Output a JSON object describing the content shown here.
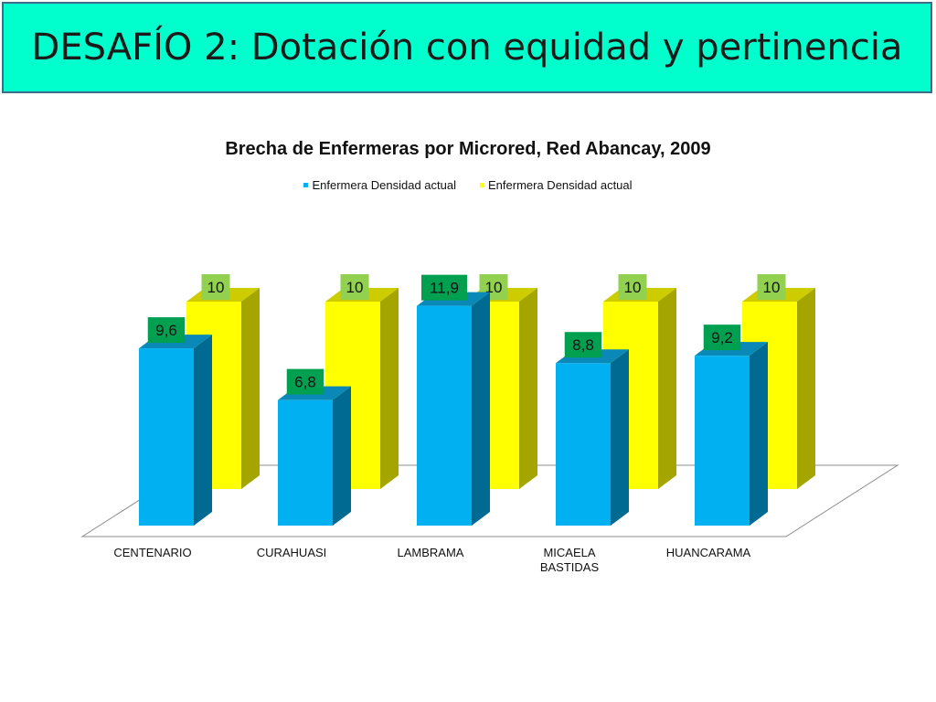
{
  "slide": {
    "title": "DESAFÍO 2: Dotación con equidad y pertinencia"
  },
  "colors": {
    "title_bg": "#00ffcc",
    "series1": "#00b0f0",
    "series2": "#ffff00",
    "label_green_dark": "#00a050",
    "label_green_light": "#92d050"
  },
  "chart_data": {
    "type": "bar",
    "title": "Brecha de Enfermeras por Microred, Red Abancay, 2009",
    "categories": [
      [
        "CENTENARIO"
      ],
      [
        "CURAHUASI"
      ],
      [
        "LAMBRAMA"
      ],
      [
        "MICAELA",
        "BASTIDAS"
      ],
      [
        "HUANCARAMA"
      ]
    ],
    "series": [
      {
        "name": "Enfermera Densidad actual",
        "values": [
          9.6,
          6.8,
          11.9,
          8.8,
          9.2
        ],
        "labels": [
          "9,6",
          "6,8",
          "11,9",
          "8,8",
          "9,2"
        ]
      },
      {
        "name": "Enfermera Densidad actual",
        "values": [
          10,
          10,
          10,
          10,
          10
        ],
        "labels": [
          "10",
          "10",
          "10",
          "10",
          "10"
        ]
      }
    ],
    "legend_position": "top",
    "three_d": true,
    "grid": false
  }
}
